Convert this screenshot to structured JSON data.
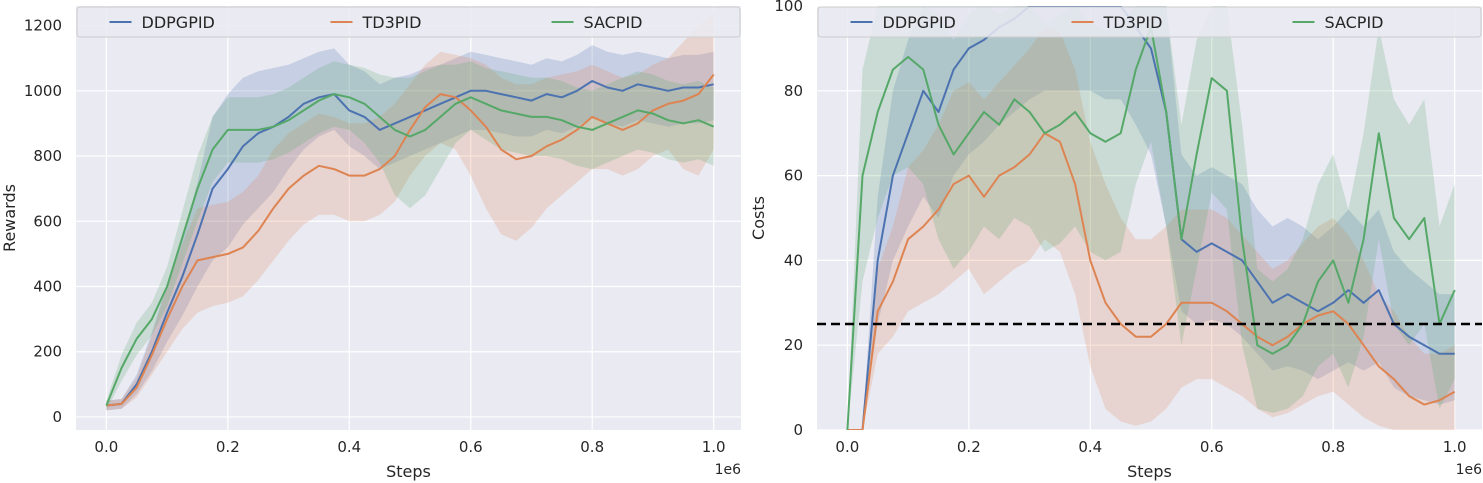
{
  "chart_data": [
    {
      "type": "line",
      "xlabel": "Steps",
      "ylabel": "Rewards",
      "x_offset_label": "1e6",
      "xlim": [
        -0.05,
        1.045
      ],
      "ylim": [
        -40,
        1260
      ],
      "xticks": [
        0.0,
        0.2,
        0.4,
        0.6,
        0.8,
        1.0
      ],
      "xtick_labels": [
        "0.0",
        "0.2",
        "0.4",
        "0.6",
        "0.8",
        "1.0"
      ],
      "yticks": [
        0,
        200,
        400,
        600,
        800,
        1000,
        1200
      ],
      "ytick_labels": [
        "0",
        "200",
        "400",
        "600",
        "800",
        "1000",
        "1200"
      ],
      "grid": true,
      "legend_placement": "top",
      "x": [
        0.0,
        0.025,
        0.05,
        0.075,
        0.1,
        0.125,
        0.15,
        0.175,
        0.2,
        0.225,
        0.25,
        0.275,
        0.3,
        0.325,
        0.35,
        0.375,
        0.4,
        0.425,
        0.45,
        0.475,
        0.5,
        0.525,
        0.55,
        0.575,
        0.6,
        0.625,
        0.65,
        0.675,
        0.7,
        0.725,
        0.75,
        0.775,
        0.8,
        0.825,
        0.85,
        0.875,
        0.9,
        0.925,
        0.95,
        0.975,
        1.0
      ],
      "series": [
        {
          "name": "DDPGPID",
          "color": "#4c72b0",
          "values": [
            35,
            40,
            100,
            200,
            320,
            430,
            560,
            700,
            760,
            830,
            870,
            890,
            920,
            960,
            980,
            990,
            940,
            920,
            880,
            900,
            920,
            940,
            960,
            980,
            1000,
            1000,
            990,
            980,
            970,
            990,
            980,
            1000,
            1030,
            1010,
            1000,
            1020,
            1010,
            1000,
            1010,
            1010,
            1020
          ],
          "lower": [
            20,
            25,
            70,
            140,
            230,
            310,
            400,
            480,
            520,
            590,
            640,
            690,
            760,
            820,
            860,
            880,
            830,
            800,
            760,
            780,
            800,
            820,
            840,
            860,
            880,
            880,
            870,
            860,
            860,
            880,
            870,
            890,
            920,
            900,
            890,
            910,
            900,
            890,
            900,
            900,
            910
          ],
          "upper": [
            50,
            55,
            130,
            260,
            410,
            550,
            720,
            920,
            990,
            1040,
            1060,
            1070,
            1080,
            1100,
            1120,
            1130,
            1080,
            1060,
            1020,
            1040,
            1050,
            1070,
            1080,
            1100,
            1120,
            1110,
            1100,
            1090,
            1080,
            1100,
            1090,
            1110,
            1140,
            1120,
            1110,
            1120,
            1110,
            1100,
            1110,
            1110,
            1120
          ]
        },
        {
          "name": "TD3PID",
          "color": "#dd8452",
          "values": [
            35,
            40,
            90,
            190,
            300,
            400,
            480,
            490,
            500,
            520,
            570,
            640,
            700,
            740,
            770,
            760,
            740,
            740,
            760,
            800,
            880,
            950,
            990,
            980,
            940,
            890,
            820,
            790,
            800,
            830,
            850,
            880,
            920,
            900,
            880,
            900,
            940,
            960,
            970,
            990,
            1050
          ],
          "lower": [
            20,
            25,
            60,
            130,
            200,
            270,
            320,
            340,
            350,
            370,
            420,
            480,
            540,
            590,
            620,
            620,
            600,
            600,
            620,
            660,
            740,
            800,
            840,
            820,
            740,
            640,
            560,
            540,
            580,
            640,
            680,
            720,
            760,
            760,
            740,
            760,
            800,
            820,
            760,
            740,
            820
          ],
          "upper": [
            50,
            55,
            120,
            250,
            400,
            530,
            640,
            650,
            660,
            690,
            740,
            820,
            870,
            900,
            930,
            920,
            900,
            900,
            920,
            960,
            1020,
            1080,
            1120,
            1110,
            1100,
            1080,
            1040,
            1020,
            1020,
            1040,
            1050,
            1060,
            1080,
            1060,
            1040,
            1050,
            1080,
            1100,
            1150,
            1200,
            1240
          ]
        },
        {
          "name": "SACPID",
          "color": "#55a868",
          "values": [
            35,
            150,
            240,
            300,
            400,
            550,
            700,
            820,
            880,
            880,
            880,
            890,
            910,
            940,
            970,
            990,
            980,
            960,
            920,
            880,
            860,
            880,
            920,
            960,
            980,
            960,
            940,
            930,
            920,
            920,
            910,
            890,
            880,
            900,
            920,
            940,
            930,
            910,
            900,
            910,
            890
          ],
          "lower": [
            20,
            110,
            190,
            250,
            340,
            470,
            600,
            720,
            780,
            780,
            780,
            790,
            810,
            840,
            870,
            890,
            880,
            840,
            780,
            680,
            640,
            680,
            760,
            840,
            880,
            850,
            820,
            810,
            800,
            800,
            790,
            770,
            760,
            780,
            800,
            820,
            810,
            790,
            780,
            790,
            770
          ],
          "upper": [
            50,
            190,
            290,
            350,
            460,
            630,
            800,
            920,
            980,
            980,
            980,
            990,
            1010,
            1040,
            1070,
            1090,
            1080,
            1070,
            1050,
            1040,
            1040,
            1060,
            1080,
            1080,
            1090,
            1070,
            1060,
            1050,
            1040,
            1040,
            1030,
            1010,
            1000,
            1020,
            1040,
            1060,
            1050,
            1030,
            1020,
            1030,
            1010
          ]
        }
      ]
    },
    {
      "type": "line",
      "xlabel": "Steps",
      "ylabel": "Costs",
      "x_offset_label": "1e6",
      "xlim": [
        -0.05,
        1.045
      ],
      "ylim": [
        0,
        100
      ],
      "xticks": [
        0.0,
        0.2,
        0.4,
        0.6,
        0.8,
        1.0
      ],
      "xtick_labels": [
        "0.0",
        "0.2",
        "0.4",
        "0.6",
        "0.8",
        "1.0"
      ],
      "yticks": [
        0,
        20,
        40,
        60,
        80,
        100
      ],
      "ytick_labels": [
        "0",
        "20",
        "40",
        "60",
        "80",
        "100"
      ],
      "grid": true,
      "legend_placement": "top",
      "threshold": {
        "y": 25,
        "color": "#000000",
        "style": "dashed"
      },
      "x": [
        0.0,
        0.025,
        0.05,
        0.075,
        0.1,
        0.125,
        0.15,
        0.175,
        0.2,
        0.225,
        0.25,
        0.275,
        0.3,
        0.325,
        0.35,
        0.375,
        0.4,
        0.425,
        0.45,
        0.475,
        0.5,
        0.525,
        0.55,
        0.575,
        0.6,
        0.625,
        0.65,
        0.675,
        0.7,
        0.725,
        0.75,
        0.775,
        0.8,
        0.825,
        0.85,
        0.875,
        0.9,
        0.925,
        0.95,
        0.975,
        1.0
      ],
      "series": [
        {
          "name": "DDPGPID",
          "color": "#4c72b0",
          "values": [
            0,
            0,
            40,
            60,
            70,
            80,
            75,
            85,
            90,
            92,
            95,
            97,
            100,
            100,
            100,
            100,
            100,
            100,
            100,
            95,
            90,
            75,
            45,
            42,
            44,
            42,
            40,
            35,
            30,
            32,
            30,
            28,
            30,
            33,
            30,
            33,
            25,
            22,
            20,
            18,
            18
          ],
          "lower": [
            0,
            0,
            25,
            40,
            48,
            55,
            50,
            60,
            65,
            68,
            72,
            75,
            78,
            80,
            80,
            80,
            80,
            78,
            78,
            72,
            65,
            48,
            28,
            25,
            26,
            25,
            22,
            18,
            14,
            15,
            14,
            12,
            14,
            16,
            14,
            16,
            10,
            8,
            7,
            6,
            7
          ],
          "upper": [
            0,
            0,
            55,
            80,
            92,
            100,
            100,
            100,
            100,
            100,
            100,
            100,
            100,
            100,
            100,
            100,
            100,
            100,
            100,
            100,
            100,
            100,
            65,
            60,
            62,
            60,
            58,
            52,
            48,
            50,
            48,
            45,
            48,
            52,
            48,
            52,
            42,
            38,
            35,
            32,
            32
          ]
        },
        {
          "name": "TD3PID",
          "color": "#dd8452",
          "values": [
            0,
            0,
            28,
            35,
            45,
            48,
            52,
            58,
            60,
            55,
            60,
            62,
            65,
            70,
            68,
            58,
            40,
            30,
            25,
            22,
            22,
            25,
            30,
            30,
            30,
            28,
            25,
            22,
            20,
            22,
            25,
            27,
            28,
            25,
            20,
            15,
            12,
            8,
            6,
            7,
            9
          ],
          "lower": [
            0,
            0,
            18,
            22,
            28,
            30,
            32,
            35,
            38,
            32,
            35,
            38,
            40,
            45,
            42,
            32,
            15,
            5,
            2,
            1,
            2,
            5,
            10,
            12,
            12,
            10,
            8,
            5,
            3,
            4,
            6,
            8,
            9,
            6,
            3,
            1,
            0,
            0,
            0,
            0,
            0
          ],
          "upper": [
            0,
            0,
            38,
            48,
            62,
            66,
            72,
            80,
            82,
            78,
            82,
            86,
            90,
            95,
            94,
            85,
            68,
            58,
            50,
            45,
            45,
            48,
            52,
            52,
            52,
            50,
            46,
            42,
            38,
            40,
            44,
            48,
            50,
            46,
            40,
            32,
            28,
            22,
            18,
            18,
            20
          ]
        },
        {
          "name": "SACPID",
          "color": "#55a868",
          "values": [
            0,
            60,
            75,
            85,
            88,
            85,
            72,
            65,
            70,
            75,
            72,
            78,
            75,
            70,
            72,
            75,
            70,
            68,
            70,
            85,
            95,
            75,
            45,
            65,
            83,
            80,
            45,
            20,
            18,
            20,
            25,
            35,
            40,
            30,
            45,
            70,
            50,
            45,
            50,
            25,
            33
          ],
          "lower": [
            0,
            35,
            50,
            60,
            62,
            58,
            45,
            38,
            42,
            48,
            45,
            50,
            48,
            42,
            44,
            48,
            42,
            40,
            42,
            58,
            68,
            48,
            20,
            38,
            56,
            52,
            20,
            5,
            4,
            5,
            8,
            15,
            18,
            10,
            22,
            45,
            25,
            20,
            25,
            5,
            12
          ],
          "upper": [
            0,
            85,
            100,
            100,
            100,
            100,
            98,
            92,
            98,
            100,
            98,
            100,
            100,
            96,
            98,
            100,
            96,
            94,
            96,
            100,
            100,
            100,
            72,
            92,
            100,
            100,
            72,
            38,
            35,
            38,
            45,
            58,
            65,
            52,
            70,
            95,
            78,
            72,
            78,
            48,
            58
          ]
        }
      ]
    }
  ]
}
